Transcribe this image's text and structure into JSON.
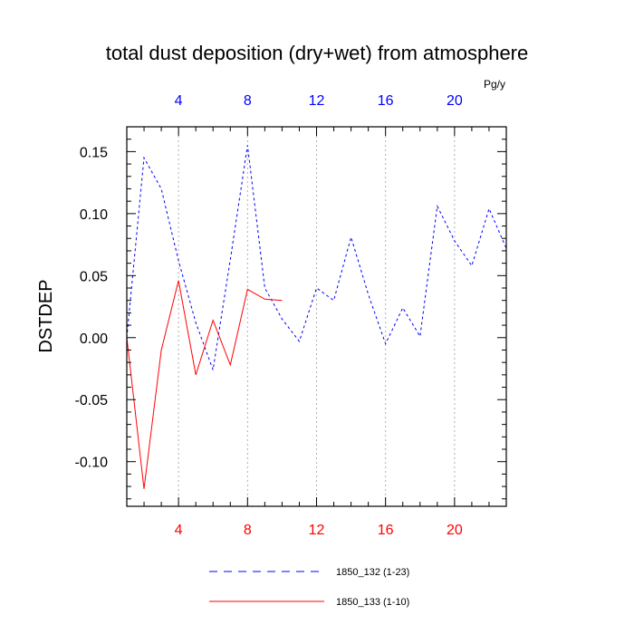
{
  "chart_data": {
    "type": "line",
    "title": "total dust deposition (dry+wet) from atmosphere",
    "ylabel": "DSTDEP",
    "top_axis_units": "Pg/y",
    "xlim": [
      1,
      23
    ],
    "ylim": [
      -0.136,
      0.17
    ],
    "x_ticks": [
      "4",
      "8",
      "12",
      "16",
      "20"
    ],
    "y_ticks": [
      "0.15",
      "0.10",
      "0.05",
      "0.00",
      "-0.05",
      "-0.10"
    ],
    "grid": "vertical dotted lines at major x ticks",
    "colors": {
      "top_axis": "#0000ff",
      "bottom_axis": "#ff0000"
    },
    "series": [
      {
        "name": "1850_132 (1-23)",
        "color": "#0000ff",
        "style": "dashed",
        "x": [
          1,
          2,
          3,
          4,
          5,
          6,
          7,
          8,
          9,
          10,
          11,
          12,
          13,
          14,
          15,
          16,
          17,
          18,
          19,
          20,
          21,
          22,
          23
        ],
        "values": [
          0.0,
          0.145,
          0.12,
          0.062,
          0.012,
          -0.026,
          0.063,
          0.155,
          0.04,
          0.015,
          -0.003,
          0.04,
          0.03,
          0.081,
          0.035,
          -0.005,
          0.024,
          0.001,
          0.106,
          0.078,
          0.058,
          0.104,
          0.072
        ]
      },
      {
        "name": "1850_133 (1-10)",
        "color": "#ff0000",
        "style": "solid",
        "x": [
          1,
          2,
          3,
          4,
          5,
          6,
          7,
          8,
          9,
          10
        ],
        "values": [
          0.0,
          -0.122,
          -0.01,
          0.046,
          -0.03,
          0.014,
          -0.022,
          0.039,
          0.031,
          0.03
        ]
      }
    ]
  }
}
